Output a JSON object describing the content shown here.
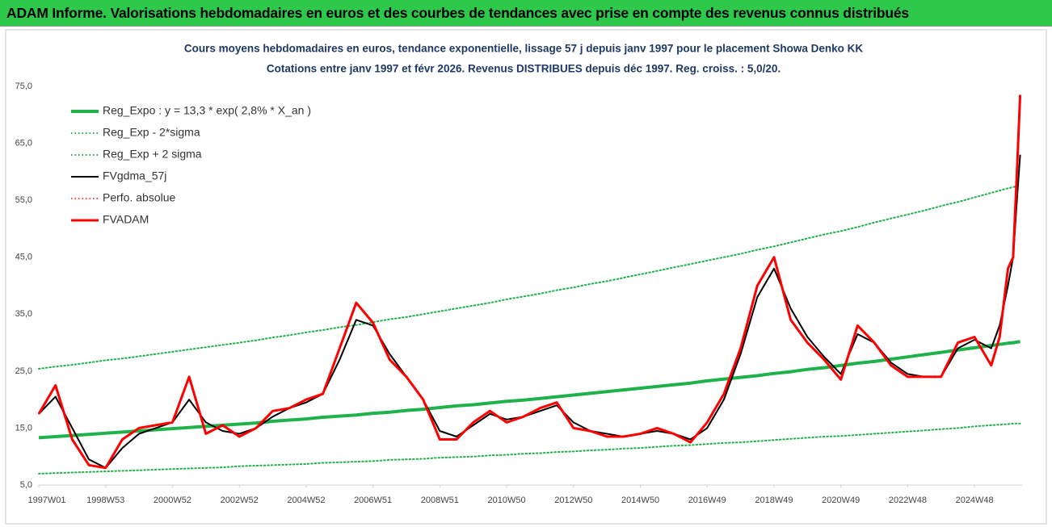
{
  "header": {
    "title": "ADAM Informe. Valorisations hebdomadaires en euros et des courbes de tendances avec prise en compte des revenus connus distribués"
  },
  "chart_data": {
    "type": "line",
    "title": "Cours moyens hebdomadaires en euros, tendance exponentielle, lissage 57 j depuis janv 1997 pour le placement Showa Denko KK",
    "subtitle": "Cotations entre janv 1997 et févr 2026. Revenus DISTRIBUES depuis déc 1997. Reg. croiss. : 5,0/20.",
    "legend": "upper left",
    "grid": false,
    "xlim": [
      0,
      1530
    ],
    "xticks": [
      {
        "value": 0,
        "label": "1997W01"
      },
      {
        "value": 104,
        "label": "1998W53"
      },
      {
        "value": 208,
        "label": "2000W52"
      },
      {
        "value": 312,
        "label": "2002W52"
      },
      {
        "value": 416,
        "label": "2004W52"
      },
      {
        "value": 520,
        "label": "2006W51"
      },
      {
        "value": 624,
        "label": "2008W51"
      },
      {
        "value": 728,
        "label": "2010W50"
      },
      {
        "value": 832,
        "label": "2012W50"
      },
      {
        "value": 936,
        "label": "2014W50"
      },
      {
        "value": 1040,
        "label": "2016W49"
      },
      {
        "value": 1144,
        "label": "2018W49"
      },
      {
        "value": 1248,
        "label": "2020W49"
      },
      {
        "value": 1352,
        "label": "2022W48"
      },
      {
        "value": 1456,
        "label": "2024W48"
      }
    ],
    "ylim": [
      5,
      75
    ],
    "yticks": [
      {
        "value": 5,
        "label": "5,0"
      },
      {
        "value": 15,
        "label": "15,0"
      },
      {
        "value": 25,
        "label": "25,0"
      },
      {
        "value": 35,
        "label": "35,0"
      },
      {
        "value": 45,
        "label": "45,0"
      },
      {
        "value": 55,
        "label": "55,0"
      },
      {
        "value": 65,
        "label": "65,0"
      },
      {
        "value": 75,
        "label": "75,0"
      }
    ],
    "x": [
      0,
      26,
      52,
      78,
      104,
      130,
      156,
      182,
      208,
      234,
      260,
      286,
      312,
      338,
      364,
      390,
      416,
      442,
      468,
      494,
      520,
      546,
      572,
      598,
      624,
      650,
      676,
      702,
      728,
      754,
      780,
      806,
      832,
      858,
      884,
      910,
      936,
      962,
      988,
      1014,
      1040,
      1066,
      1092,
      1118,
      1144,
      1170,
      1196,
      1222,
      1248,
      1274,
      1300,
      1326,
      1352,
      1378,
      1404,
      1430,
      1456,
      1482,
      1495,
      1508,
      1516,
      1522,
      1527
    ],
    "series": [
      {
        "name": "Reg_Expo : y = 13,3 * exp( 2,8% *  X_an )",
        "color": "#1fb24a",
        "style": "solid",
        "line_width": 4,
        "values": [
          13.3,
          13.5,
          13.7,
          13.9,
          14.1,
          14.3,
          14.5,
          14.7,
          14.9,
          15.1,
          15.3,
          15.5,
          15.7,
          15.9,
          16.2,
          16.4,
          16.6,
          16.9,
          17.1,
          17.3,
          17.6,
          17.8,
          18.1,
          18.3,
          18.6,
          18.9,
          19.1,
          19.4,
          19.7,
          19.9,
          20.2,
          20.5,
          20.8,
          21.1,
          21.4,
          21.7,
          22.0,
          22.3,
          22.6,
          22.9,
          23.3,
          23.6,
          23.9,
          24.2,
          24.6,
          24.9,
          25.3,
          25.6,
          26.0,
          26.4,
          26.7,
          27.1,
          27.5,
          27.9,
          28.3,
          28.7,
          29.1,
          29.5,
          29.7,
          29.9,
          30.0,
          30.1,
          30.2
        ]
      },
      {
        "name": "Reg_Exp - 2*sigma",
        "color": "#1fb24a",
        "style": "dotted",
        "line_width": 2,
        "values": [
          7.0,
          7.1,
          7.2,
          7.3,
          7.4,
          7.5,
          7.6,
          7.7,
          7.8,
          7.9,
          8.0,
          8.1,
          8.3,
          8.4,
          8.5,
          8.6,
          8.7,
          8.9,
          9.0,
          9.1,
          9.2,
          9.4,
          9.5,
          9.6,
          9.8,
          9.9,
          10.0,
          10.2,
          10.3,
          10.5,
          10.6,
          10.8,
          10.9,
          11.1,
          11.2,
          11.4,
          11.5,
          11.7,
          11.9,
          12.0,
          12.2,
          12.4,
          12.5,
          12.7,
          12.9,
          13.1,
          13.3,
          13.5,
          13.6,
          13.8,
          14.0,
          14.2,
          14.4,
          14.6,
          14.8,
          15.0,
          15.3,
          15.5,
          15.6,
          15.7,
          15.8,
          15.8,
          15.8
        ]
      },
      {
        "name": "Reg_Exp + 2 sigma",
        "color": "#1fb24a",
        "style": "dotted",
        "line_width": 2,
        "values": [
          25.4,
          25.8,
          26.1,
          26.5,
          26.9,
          27.2,
          27.6,
          28.0,
          28.4,
          28.8,
          29.2,
          29.6,
          30.0,
          30.4,
          30.9,
          31.3,
          31.8,
          32.2,
          32.7,
          33.1,
          33.6,
          34.1,
          34.5,
          35.0,
          35.5,
          36.0,
          36.5,
          37.0,
          37.6,
          38.1,
          38.6,
          39.2,
          39.7,
          40.3,
          40.8,
          41.4,
          42.0,
          42.6,
          43.2,
          43.8,
          44.4,
          45.0,
          45.6,
          46.3,
          46.9,
          47.6,
          48.3,
          49.0,
          49.6,
          50.3,
          51.1,
          51.8,
          52.5,
          53.2,
          54.0,
          54.7,
          55.5,
          56.3,
          56.7,
          57.1,
          57.3,
          57.5,
          57.7
        ]
      },
      {
        "name": "FVgdma_57j",
        "color": "#000000",
        "style": "solid",
        "line_width": 2,
        "values": [
          17.5,
          20.5,
          15,
          9.5,
          8,
          11.5,
          14,
          15,
          16,
          20,
          16,
          14.5,
          14,
          15,
          17,
          18.5,
          19.5,
          21,
          27,
          34,
          33,
          28,
          24,
          20,
          14.5,
          13.5,
          15.5,
          17.5,
          16.5,
          17,
          18,
          19,
          16,
          14.5,
          14,
          13.5,
          14,
          14.5,
          14,
          13,
          15,
          20,
          28,
          38,
          43,
          36,
          31,
          27.5,
          24.5,
          31.5,
          30,
          26.5,
          24.5,
          24,
          24,
          29,
          30.5,
          29,
          33,
          40,
          45,
          55,
          63
        ]
      },
      {
        "name": "Perfo. absolue",
        "color": "#ff0000",
        "style": "dotted",
        "line_width": 1.5,
        "values": [
          17.5,
          22.5,
          13,
          8.5,
          8,
          13,
          15,
          15.5,
          16,
          24,
          14,
          15.5,
          13.5,
          15,
          18,
          18.5,
          20,
          21,
          29,
          37,
          33.5,
          27,
          24,
          20,
          13,
          13,
          16,
          18,
          16,
          17,
          18.5,
          19.5,
          15,
          14.5,
          13.5,
          13.5,
          14,
          15,
          14,
          12.5,
          16,
          21,
          29,
          40,
          45,
          34,
          30,
          27,
          23.5,
          33,
          30,
          26,
          24,
          24,
          24,
          30,
          31,
          26,
          31,
          43,
          45,
          60,
          73.5
        ]
      },
      {
        "name": "FVADAM",
        "color": "#ff0000",
        "style": "solid",
        "line_width": 3,
        "values": [
          17.5,
          22.5,
          13,
          8.5,
          8,
          13,
          15,
          15.5,
          16,
          24,
          14,
          15.5,
          13.5,
          15,
          18,
          18.5,
          20,
          21,
          29,
          37,
          33.5,
          27,
          24,
          20,
          13,
          13,
          16,
          18,
          16,
          17,
          18.5,
          19.5,
          15,
          14.5,
          13.5,
          13.5,
          14,
          15,
          14,
          12.5,
          16,
          21,
          29,
          40,
          45,
          34,
          30,
          27,
          23.5,
          33,
          30,
          26,
          24,
          24,
          24,
          30,
          31,
          26,
          31,
          43,
          45,
          60,
          73.5
        ]
      }
    ]
  }
}
